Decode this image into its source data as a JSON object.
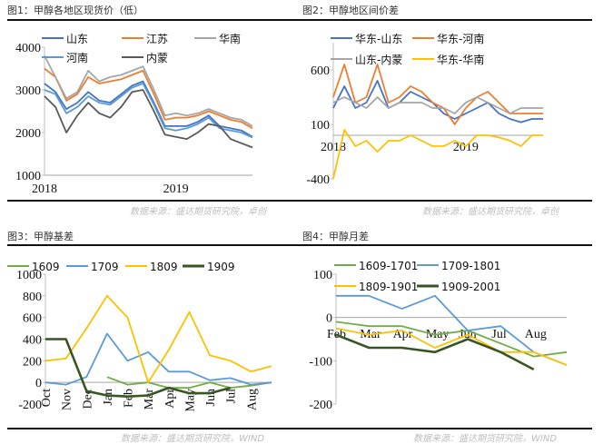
{
  "panels": [
    {
      "title": "图1：甲醇各地区现货价（低）",
      "source": "数据来源：盛达期货研究院，卓创"
    },
    {
      "title": "图2：甲醇地区间价差",
      "source": "数据来源：盛达期货研究院，卓创"
    },
    {
      "title": "图3：甲醇基差",
      "source": "数据来源：盛达期货研究院，WIND"
    },
    {
      "title": "图4：甲醇月差",
      "source": "数据来源：盛达期货研究院，WIND"
    }
  ],
  "chart_data": [
    {
      "type": "line",
      "title": "图1：甲醇各地区现货价（低）",
      "ylim": [
        1000,
        4000
      ],
      "yticks": [
        "1000",
        "2000",
        "3000",
        "4000"
      ],
      "grid": false,
      "legend": "top",
      "x": [
        "2018-01",
        "2018-02",
        "2018-03",
        "2018-04",
        "2018-05",
        "2018-06",
        "2018-07",
        "2018-08",
        "2018-09",
        "2018-10",
        "2018-11",
        "2018-12",
        "2019-01",
        "2019-02",
        "2019-03",
        "2019-04",
        "2019-05",
        "2019-06",
        "2019-07",
        "2019-08"
      ],
      "xtick_labels": [
        "2018",
        "2019"
      ],
      "series": [
        {
          "name": "山东",
          "color": "#4472c4",
          "values": [
            3150,
            2950,
            2550,
            2700,
            2950,
            2750,
            2700,
            2900,
            3100,
            3200,
            2700,
            2150,
            2150,
            2150,
            2250,
            2400,
            2150,
            2100,
            2050,
            1900
          ]
        },
        {
          "name": "江苏",
          "color": "#ed7d31",
          "values": [
            3500,
            3300,
            2750,
            2900,
            3300,
            3150,
            3200,
            3250,
            3350,
            3450,
            2900,
            2300,
            2350,
            2350,
            2400,
            2500,
            2400,
            2300,
            2250,
            2100
          ]
        },
        {
          "name": "华南",
          "color": "#a5a5a5",
          "values": [
            3800,
            3300,
            2800,
            2950,
            3450,
            3200,
            3300,
            3350,
            3450,
            3550,
            3000,
            2400,
            2450,
            2400,
            2450,
            2550,
            2450,
            2350,
            2300,
            2150
          ]
        },
        {
          "name": "河南",
          "color": "#5b9bd5",
          "values": [
            3000,
            2900,
            2450,
            2600,
            2850,
            2700,
            2650,
            2850,
            3050,
            3150,
            2650,
            2100,
            2050,
            2100,
            2200,
            2350,
            2100,
            2050,
            2000,
            1880
          ]
        },
        {
          "name": "内蒙",
          "color": "#595959",
          "values": [
            2850,
            2600,
            2000,
            2400,
            2700,
            2450,
            2350,
            2600,
            2950,
            3000,
            2500,
            1950,
            1900,
            1850,
            2000,
            2200,
            2150,
            1850,
            1750,
            1650
          ]
        }
      ]
    },
    {
      "type": "line",
      "title": "图2：甲醇地区间价差",
      "ylim": [
        -400,
        700
      ],
      "yticks": [
        "-400",
        "100",
        "600"
      ],
      "grid": false,
      "legend": "top",
      "x": [
        "2018-01",
        "2018-02",
        "2018-03",
        "2018-04",
        "2018-05",
        "2018-06",
        "2018-07",
        "2018-08",
        "2018-09",
        "2018-10",
        "2018-11",
        "2018-12",
        "2019-01",
        "2019-02",
        "2019-03",
        "2019-04",
        "2019-05",
        "2019-06",
        "2019-07",
        "2019-08"
      ],
      "xtick_labels": [
        "2018",
        "2019"
      ],
      "series": [
        {
          "name": "华东-山东",
          "color": "#4472c4",
          "values": [
            250,
            450,
            250,
            300,
            500,
            250,
            300,
            400,
            350,
            300,
            200,
            150,
            200,
            250,
            300,
            200,
            150,
            120,
            150,
            150
          ]
        },
        {
          "name": "华东-河南",
          "color": "#ed7d31",
          "values": [
            350,
            650,
            300,
            350,
            650,
            300,
            350,
            450,
            400,
            300,
            250,
            100,
            250,
            350,
            400,
            300,
            200,
            200,
            200,
            200
          ]
        },
        {
          "name": "山东-内蒙",
          "color": "#a5a5a5",
          "values": [
            300,
            350,
            300,
            250,
            350,
            250,
            300,
            300,
            300,
            250,
            250,
            200,
            300,
            350,
            300,
            250,
            200,
            250,
            250,
            250
          ]
        },
        {
          "name": "华东-华南",
          "color": "#ffc000",
          "values": [
            -400,
            50,
            -100,
            -50,
            -150,
            -50,
            -50,
            0,
            -50,
            -100,
            -100,
            -50,
            -100,
            0,
            0,
            -20,
            -50,
            -100,
            0,
            0
          ]
        }
      ]
    },
    {
      "type": "line",
      "title": "图3：甲醇基差",
      "ylim": [
        -200,
        1000
      ],
      "yticks": [
        "-200",
        "0",
        "200",
        "400",
        "600",
        "800",
        "1000"
      ],
      "grid": false,
      "legend": "top",
      "x": [
        "Oct",
        "Nov",
        "Dec",
        "Jan",
        "Feb",
        "Mar",
        "Apr",
        "May",
        "Jun",
        "Jul",
        "Aug",
        "Sep"
      ],
      "xtick_labels": [
        "Oct",
        "Nov",
        "Dec",
        "Jan",
        "Feb",
        "Mar",
        "Apr",
        "May",
        "Jun",
        "Jul",
        "Aug"
      ],
      "series": [
        {
          "name": "1609",
          "color": "#70ad47",
          "values": [
            null,
            null,
            null,
            50,
            -20,
            0,
            -50,
            -50,
            0,
            -50,
            -30,
            0
          ]
        },
        {
          "name": "1709",
          "color": "#5b9bd5",
          "values": [
            0,
            -20,
            50,
            450,
            200,
            280,
            100,
            100,
            20,
            40,
            -20,
            0
          ]
        },
        {
          "name": "1809",
          "color": "#ffc000",
          "values": [
            200,
            220,
            500,
            800,
            600,
            0,
            300,
            650,
            250,
            200,
            100,
            150
          ]
        },
        {
          "name": "1909",
          "color": "#375623",
          "values": [
            400,
            400,
            -80,
            -120,
            -130,
            -120,
            -50,
            -100,
            -100,
            -50,
            null,
            null
          ]
        }
      ]
    },
    {
      "type": "line",
      "title": "图4：甲醇月差",
      "ylim": [
        -200,
        100
      ],
      "yticks": [
        "-200",
        "-100",
        "0",
        "100"
      ],
      "grid": false,
      "legend": "top",
      "x": [
        "Feb",
        "Mar",
        "Apr",
        "May",
        "Jun",
        "Jul",
        "Aug",
        "Sep"
      ],
      "xtick_labels": [
        "Feb",
        "Mar",
        "Apr",
        "May",
        "Jun",
        "Jul",
        "Aug"
      ],
      "series": [
        {
          "name": "1609-1701",
          "color": "#70ad47",
          "values": [
            -10,
            -20,
            -20,
            -40,
            -30,
            -60,
            -90,
            -80
          ]
        },
        {
          "name": "1709-1801",
          "color": "#5b9bd5",
          "values": [
            50,
            50,
            20,
            50,
            -30,
            -20,
            -80,
            -110
          ]
        },
        {
          "name": "1809-1901",
          "color": "#ffc000",
          "values": [
            -25,
            -40,
            -30,
            -70,
            -40,
            -80,
            -80,
            -110
          ]
        },
        {
          "name": "1909-2001",
          "color": "#375623",
          "values": [
            -40,
            -70,
            -70,
            -80,
            -50,
            -80,
            -120,
            null
          ]
        }
      ]
    }
  ]
}
